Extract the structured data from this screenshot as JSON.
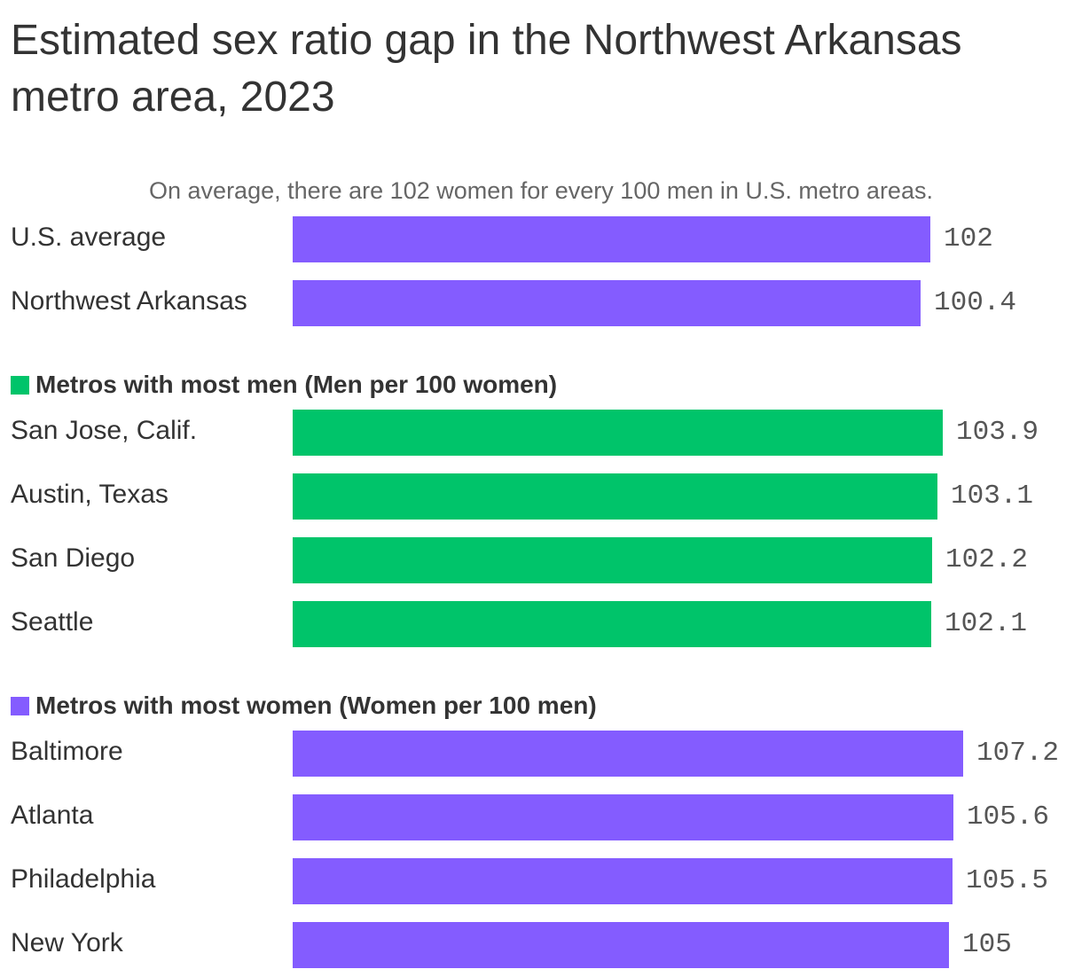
{
  "title": "Estimated sex ratio gap in the Northwest Arkansas metro area, 2023",
  "subtitle": "On average, there are 102 women for every 100 men in U.S. metro areas.",
  "colors": {
    "purple": "#845cff",
    "green": "#00c46a"
  },
  "chart_data": {
    "type": "bar",
    "orientation": "horizontal",
    "title": "Estimated sex ratio gap in the Northwest Arkansas metro area, 2023",
    "subtitle": "On average, there are 102 women for every 100 men in U.S. metro areas.",
    "xlim": [
      0,
      107.2
    ],
    "grid": false,
    "groups": [
      {
        "label": "",
        "color": "#845cff",
        "categories": [
          "U.S. average",
          "Northwest Arkansas"
        ],
        "values": [
          102,
          100.4
        ],
        "value_labels": [
          "102",
          "100.4"
        ]
      },
      {
        "label": "Metros with most men (Men per 100 women)",
        "color": "#00c46a",
        "categories": [
          "San Jose, Calif.",
          "Austin, Texas",
          "San Diego",
          "Seattle"
        ],
        "values": [
          103.9,
          103.1,
          102.2,
          102.1
        ],
        "value_labels": [
          "103.9",
          "103.1",
          "102.2",
          "102.1"
        ]
      },
      {
        "label": "Metros with most women (Women per 100 men)",
        "color": "#845cff",
        "categories": [
          "Baltimore",
          "Atlanta",
          "Philadelphia",
          "New York"
        ],
        "values": [
          107.2,
          105.6,
          105.5,
          105
        ],
        "value_labels": [
          "107.2",
          "105.6",
          "105.5",
          "105"
        ]
      }
    ]
  }
}
